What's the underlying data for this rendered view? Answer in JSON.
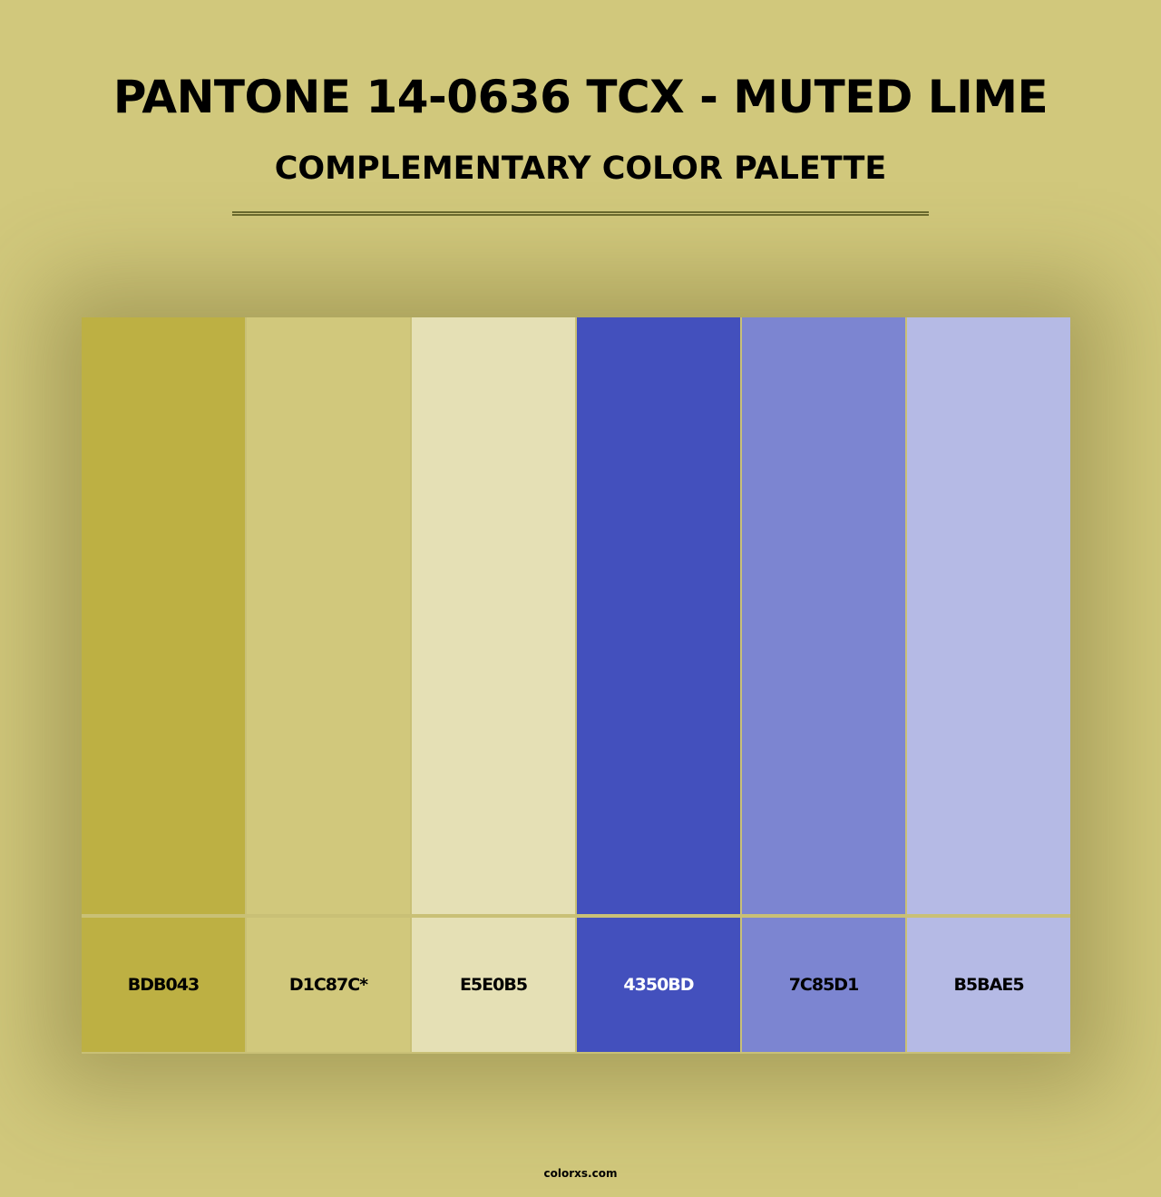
{
  "header": {
    "title": "PANTONE 14-0636 TCX - MUTED LIME",
    "subtitle": "COMPLEMENTARY COLOR PALETTE"
  },
  "background_color": "#d1c87c",
  "palette": [
    {
      "hex": "BDB043",
      "color": "#bdb043",
      "text_color": "#000000"
    },
    {
      "hex": "D1C87C*",
      "color": "#d1c87c",
      "text_color": "#000000"
    },
    {
      "hex": "E5E0B5",
      "color": "#e5e0b5",
      "text_color": "#000000"
    },
    {
      "hex": "4350BD",
      "color": "#4350bd",
      "text_color": "#ffffff"
    },
    {
      "hex": "7C85D1",
      "color": "#7c85d1",
      "text_color": "#000000"
    },
    {
      "hex": "B5BAE5",
      "color": "#b5bae5",
      "text_color": "#000000"
    }
  ],
  "footer": {
    "site": "colorxs.com"
  }
}
